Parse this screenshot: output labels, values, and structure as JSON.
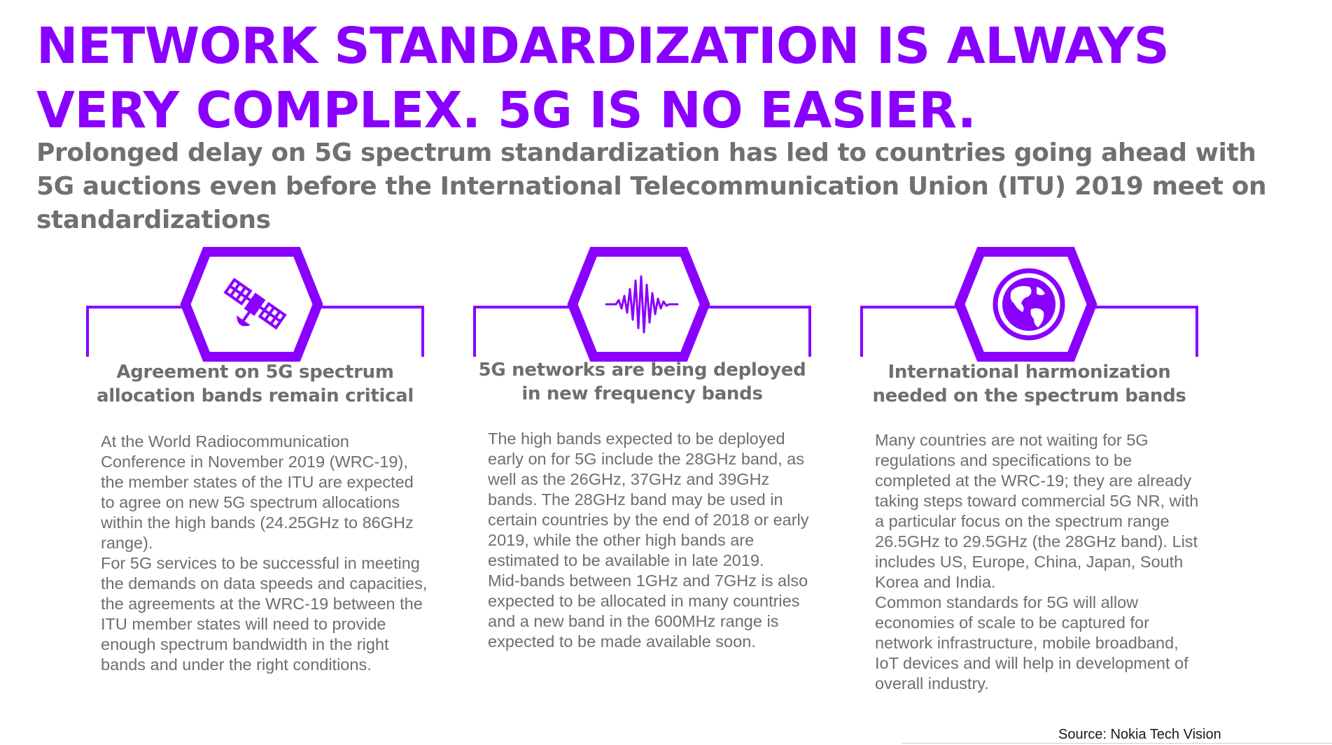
{
  "title": "NETWORK STANDARDIZATION IS ALWAYS VERY COMPLEX. 5G IS NO EASIER.",
  "subtitle": "Prolonged delay on 5G spectrum standardization has led to countries going ahead with 5G auctions even before the International Telecommunication Union (ITU) 2019 meet on standardizations",
  "colors": {
    "accent": "#8A00FF",
    "heading_text": "#6E6E6E",
    "body_text": "#6E6E6E"
  },
  "cards": [
    {
      "icon": "satellite-icon",
      "heading": "Agreement on 5G spectrum allocation bands remain critical",
      "body": "At the World Radiocommunication Conference in November 2019 (WRC-19), the member states of the ITU are expected to agree on new 5G spectrum allocations within the high bands (24.25GHz to 86GHz range).\nFor 5G services to be successful in meeting the demands on data speeds and capacities, the agreements at the WRC-19 between the ITU member states will need to provide enough spectrum bandwidth in the right bands and under the right conditions."
    },
    {
      "icon": "sound-wave-icon",
      "heading": "5G networks are being deployed in new frequency bands",
      "body": "The high bands expected to be deployed early on for 5G include the 28GHz band, as well as the 26GHz, 37GHz and 39GHz bands. The 28GHz band may be used in certain countries by the end of 2018 or early 2019, while the other high bands are estimated to be available in late 2019.\nMid-bands between 1GHz and 7GHz is also expected to be allocated in many countries and a new band in the 600MHz range is expected to be made available soon."
    },
    {
      "icon": "globe-icon",
      "heading": "International harmonization needed on the spectrum bands",
      "body": "Many countries are not waiting for 5G regulations and specifications to be completed at the WRC-19; they are already taking steps toward commercial 5G NR, with a particular focus on the spectrum range 26.5GHz to 29.5GHz (the 28GHz band). List includes US, Europe, China, Japan, South Korea and India.\nCommon standards for 5G will allow economies of scale to be captured for network infrastructure, mobile broadband, IoT devices and will help in development of overall industry."
    }
  ],
  "source": "Source: Nokia Tech Vision"
}
